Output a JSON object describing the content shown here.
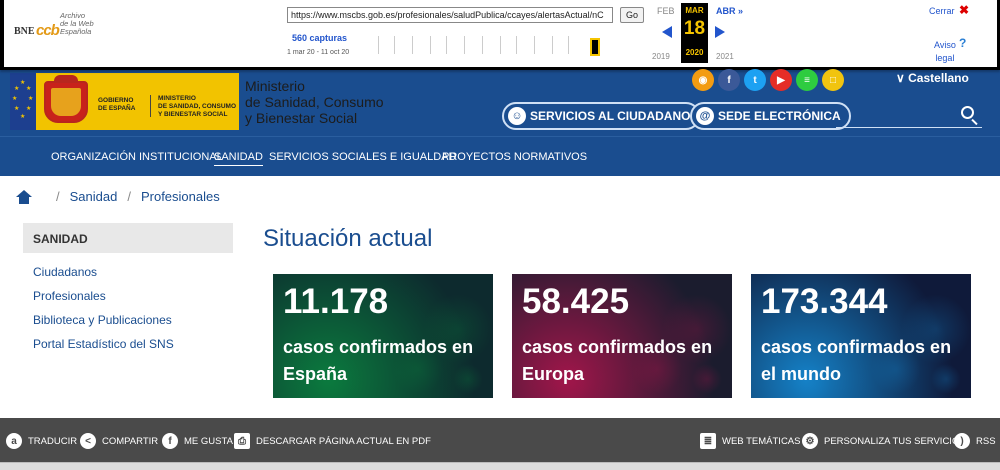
{
  "wayback": {
    "logo_bne": "BNE",
    "logo_ccb": "ccb",
    "logo_archive": [
      "Archivo",
      "de la Web",
      "Española"
    ],
    "url": "https://www.mscbs.gob.es/profesionales/saludPublica/ccayes/alertasActual/nC",
    "go_label": "Go",
    "captures": "560 capturas",
    "range": "1 mar 20 - 11 oct 20",
    "prev_month": "FEB",
    "current_month": "MAR",
    "next_month": "ABR »",
    "day": "18",
    "prev_year": "2019",
    "current_year": "2020",
    "next_year": "2021",
    "close_label": "Cerrar",
    "close_icon": "✖",
    "aviso_label": "Aviso",
    "legal_label": "legal",
    "help_icon": "?"
  },
  "header": {
    "gov_line1": "GOBIERNO",
    "gov_line2": "DE ESPAÑA",
    "min_line1": "MINISTERIO",
    "min_line2": "DE SANIDAD, CONSUMO",
    "min_line3": "Y BIENESTAR SOCIAL",
    "ministry_l1": "Ministerio",
    "ministry_l2": "de Sanidad, Consumo",
    "ministry_l3": "y Bienestar Social",
    "language": "Castellano",
    "language_icon": "∨",
    "ciudadano_icon": "☺",
    "ciudadano_label": "SERVICIOS AL CIUDADANO",
    "sede_icon": "@",
    "sede_label": "SEDE ELECTRÓNICA"
  },
  "social": [
    {
      "icon": "rss-icon",
      "glyph": "◉",
      "color": "#f39c12"
    },
    {
      "icon": "facebook-icon",
      "glyph": "f",
      "color": "#3b5998"
    },
    {
      "icon": "twitter-icon",
      "glyph": "t",
      "color": "#1da1f2"
    },
    {
      "icon": "youtube-icon",
      "glyph": "▶",
      "color": "#e52d27"
    },
    {
      "icon": "list-icon",
      "glyph": "≡",
      "color": "#2ecc40"
    },
    {
      "icon": "bookmark-icon",
      "glyph": "□",
      "color": "#f1c40f"
    }
  ],
  "nav": [
    {
      "label": "ORGANIZACIÓN INSTITUCIONAL",
      "active": false
    },
    {
      "label": "SANIDAD",
      "active": true
    },
    {
      "label": "SERVICIOS SOCIALES E IGUALDAD",
      "active": false
    },
    {
      "label": "PROYECTOS NORMATIVOS",
      "active": false
    }
  ],
  "breadcrumb": [
    "Sanidad",
    "Profesionales"
  ],
  "breadcrumb_sep": "/",
  "sidebar": {
    "heading": "SANIDAD",
    "links": [
      "Ciudadanos",
      "Profesionales",
      "Biblioteca y Publicaciones",
      "Portal Estadístico del SNS"
    ]
  },
  "main": {
    "title": "Situación actual",
    "cards": [
      {
        "number": "11.178",
        "caption": "casos confirmados en España",
        "color_from": "#0b7a3e",
        "color_to": "#0d2a2e"
      },
      {
        "number": "58.425",
        "caption": "casos confirmados en Europa",
        "color_from": "#a0164a",
        "color_to": "#1b1c2e"
      },
      {
        "number": "173.344",
        "caption": "casos confirmados en el mundo",
        "color_from": "#1581c7",
        "color_to": "#0f1a3a"
      }
    ]
  },
  "footer": [
    {
      "icon": "translate-icon",
      "glyph": "a",
      "label": "TRADUCIR"
    },
    {
      "icon": "share-icon",
      "glyph": "<",
      "label": "COMPARTIR"
    },
    {
      "icon": "facebook-like-icon",
      "glyph": "f",
      "label": "ME GUSTA"
    },
    {
      "icon": "pdf-icon",
      "glyph": "⎙",
      "label": "DESCARGAR PÁGINA ACTUAL EN PDF"
    },
    {
      "icon": "web-themes-icon",
      "glyph": "≣",
      "label": "WEB TEMÁTICAS"
    },
    {
      "icon": "gear-icon",
      "glyph": "⚙",
      "label": "PERSONALIZA TUS SERVICIOS"
    },
    {
      "icon": "rss-icon",
      "glyph": ")",
      "label": "RSS"
    }
  ]
}
